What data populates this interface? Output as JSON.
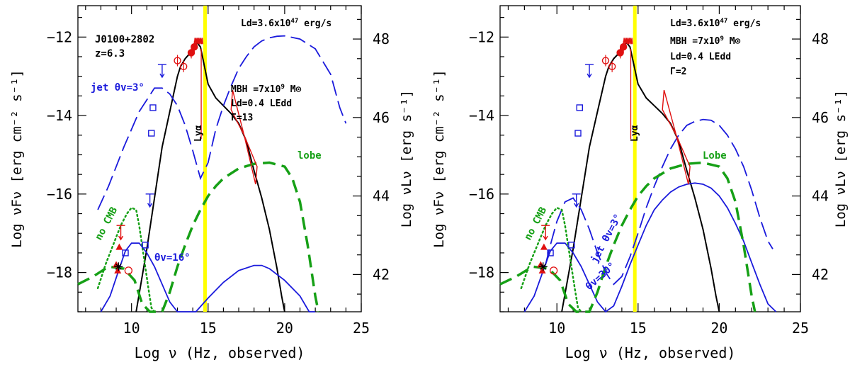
{
  "colors": {
    "axis": "#000000",
    "disk": "#000000",
    "jet": "#1a1adc",
    "lobe": "#16a016",
    "data": "#e01010",
    "lya_line": "#ffff00"
  },
  "chart_data": [
    {
      "type": "line",
      "panel": "left",
      "xlabel": "Log ν (Hz, observed)",
      "ylabel": "Log νFν [erg cm⁻² s⁻¹]",
      "y2label": "Log νLν [erg s⁻¹]",
      "xlim": [
        6.5,
        25
      ],
      "ylim": [
        -19,
        -11.2
      ],
      "xticks": [
        10,
        15,
        20,
        25
      ],
      "yticks": [
        -12,
        -14,
        -16,
        -18
      ],
      "y2ticks": [
        42,
        44,
        46,
        48
      ],
      "annotations": [
        "J0100+2802",
        "z=6.3",
        "Ld=3.6x10^47 erg/s",
        "MBH =7x10^9 M⊙",
        "Ld=0.4 LEdd",
        "Γ=13",
        "Lyα",
        "no CMB",
        "lobe"
      ],
      "series": [
        {
          "name": "Accretion disk",
          "style": "solid-black",
          "x": [
            10.3,
            11,
            12,
            12.5,
            13,
            13.2,
            13.5,
            13.8,
            14.1,
            14.3,
            14.5,
            15,
            15.5,
            16,
            16.5,
            17,
            17.5,
            18,
            18.5,
            19,
            19.5,
            19.8,
            20
          ],
          "y": [
            -19,
            -17.4,
            -14.8,
            -13.9,
            -13.0,
            -12.75,
            -12.55,
            -12.42,
            -12.22,
            -12.15,
            -12.25,
            -13.2,
            -13.55,
            -13.75,
            -13.95,
            -14.2,
            -14.65,
            -15.4,
            -16.1,
            -16.9,
            -17.9,
            -18.6,
            -19
          ]
        },
        {
          "name": "jet θv=3°",
          "style": "dash-blue",
          "x": [
            7.8,
            8.5,
            9.5,
            10.5,
            11.5,
            12,
            12.5,
            13,
            13.5,
            14,
            14.5,
            15,
            15.5,
            16,
            16.5,
            17,
            17.5,
            18,
            18.5,
            19,
            19.5,
            20,
            21,
            22,
            23,
            23.6,
            24
          ],
          "y": [
            -16.4,
            -15.8,
            -14.8,
            -13.9,
            -13.3,
            -13.3,
            -13.45,
            -13.75,
            -14.25,
            -14.9,
            -15.6,
            -15.2,
            -14.35,
            -13.75,
            -13.25,
            -12.8,
            -12.5,
            -12.25,
            -12.1,
            -12.02,
            -11.98,
            -11.97,
            -12.05,
            -12.3,
            -12.95,
            -13.8,
            -14.2
          ]
        },
        {
          "name": "θv=16°",
          "style": "solid-blue",
          "x": [
            8,
            8.6,
            9.2,
            9.6,
            10,
            10.5,
            11,
            11.5,
            12,
            12.5,
            13,
            13.3,
            13.5,
            13.8,
            14.2,
            15,
            16,
            17,
            18,
            18.5,
            19,
            20,
            21,
            21.6,
            22
          ],
          "y": [
            -19,
            -18.6,
            -17.9,
            -17.45,
            -17.25,
            -17.25,
            -17.5,
            -17.85,
            -18.3,
            -18.75,
            -19,
            -19.3,
            -19.35,
            -19.2,
            -19.0,
            -18.65,
            -18.25,
            -17.95,
            -17.82,
            -17.82,
            -17.9,
            -18.2,
            -18.6,
            -19.0,
            -19.3
          ]
        },
        {
          "name": "no CMB",
          "style": "dotted-green",
          "x": [
            7.8,
            8.3,
            8.8,
            9.3,
            9.7,
            10,
            10.3,
            10.5,
            10.8,
            11.1,
            11.3,
            11.5
          ],
          "y": [
            -18.4,
            -17.8,
            -17.3,
            -16.8,
            -16.5,
            -16.35,
            -16.4,
            -16.8,
            -17.6,
            -18.4,
            -18.9,
            -19.0
          ]
        },
        {
          "name": "lobe",
          "style": "dash-green",
          "x": [
            6.5,
            7.5,
            8.5,
            9.5,
            10.2,
            10.7,
            11.2,
            11.6,
            11.9,
            12,
            12.5,
            13,
            13.5,
            14,
            14.5,
            15,
            15.5,
            16,
            17,
            18,
            19,
            20,
            20.5,
            21,
            21.5,
            22,
            22.2
          ],
          "y": [
            -18.3,
            -18.1,
            -17.85,
            -17.9,
            -18.2,
            -18.8,
            -19.3,
            -19.6,
            -19.35,
            -19.2,
            -18.5,
            -17.85,
            -17.3,
            -16.8,
            -16.4,
            -16.05,
            -15.8,
            -15.6,
            -15.35,
            -15.23,
            -15.2,
            -15.3,
            -15.6,
            -16.2,
            -17.3,
            -18.6,
            -19
          ]
        }
      ]
    },
    {
      "type": "line",
      "panel": "right",
      "xlabel": "Log ν (Hz, observed)",
      "ylabel": "Log νFν [erg cm⁻² s⁻¹]",
      "y2label": "Log νLν [erg s⁻¹]",
      "xlim": [
        6.5,
        25
      ],
      "ylim": [
        -19,
        -11.2
      ],
      "xticks": [
        10,
        15,
        20,
        25
      ],
      "yticks": [
        -12,
        -14,
        -16,
        -18
      ],
      "y2ticks": [
        42,
        44,
        46,
        48
      ],
      "annotations": [
        "Ld=3.6x10^47 erg/s",
        "MBH =7x10^9 M⊙",
        "Ld=0.4 LEdd",
        "Γ=2",
        "Lyα",
        "no CMB",
        "Lobe",
        "jet θv=3°",
        "θv=30°"
      ],
      "series": [
        {
          "name": "Accretion disk",
          "style": "solid-black",
          "x": [
            10.3,
            11,
            12,
            12.5,
            13,
            13.2,
            13.5,
            13.8,
            14.1,
            14.3,
            14.5,
            15,
            15.5,
            16,
            16.5,
            17,
            17.5,
            18,
            18.5,
            19,
            19.5,
            19.8,
            20
          ],
          "y": [
            -19,
            -17.4,
            -14.8,
            -13.9,
            -13.0,
            -12.75,
            -12.55,
            -12.42,
            -12.22,
            -12.15,
            -12.25,
            -13.2,
            -13.55,
            -13.75,
            -13.95,
            -14.2,
            -14.65,
            -15.4,
            -16.1,
            -16.9,
            -17.9,
            -18.6,
            -19
          ]
        },
        {
          "name": "jet θv=3°",
          "style": "dash-blue",
          "x": [
            9.3,
            9.6,
            10,
            10.5,
            11,
            11.5,
            12,
            12.5,
            13,
            13.5,
            14,
            14.5,
            15,
            15.5,
            16,
            16.5,
            17,
            17.5,
            18,
            18.5,
            19,
            19.5,
            20,
            20.5,
            21,
            21.5,
            22,
            22.5,
            23,
            23.3
          ],
          "y": [
            -17.8,
            -17.3,
            -16.7,
            -16.2,
            -16.1,
            -16.4,
            -16.9,
            -17.5,
            -18.0,
            -18.3,
            -18.1,
            -17.6,
            -17.0,
            -16.35,
            -15.8,
            -15.3,
            -14.85,
            -14.5,
            -14.25,
            -14.15,
            -14.1,
            -14.12,
            -14.25,
            -14.5,
            -14.85,
            -15.3,
            -15.9,
            -16.6,
            -17.2,
            -17.4
          ]
        },
        {
          "name": "θv=30°",
          "style": "solid-blue",
          "x": [
            8,
            8.6,
            9.2,
            9.6,
            10,
            10.5,
            11,
            11.5,
            12,
            12.5,
            13,
            13.5,
            14,
            14.5,
            15,
            15.5,
            16,
            16.5,
            17,
            17.5,
            18,
            18.5,
            19,
            19.5,
            20,
            20.5,
            21,
            21.5,
            22,
            22.5,
            23,
            23.5
          ],
          "y": [
            -19,
            -18.6,
            -17.9,
            -17.45,
            -17.25,
            -17.25,
            -17.5,
            -17.85,
            -18.3,
            -18.75,
            -19.0,
            -18.85,
            -18.35,
            -17.8,
            -17.3,
            -16.8,
            -16.4,
            -16.15,
            -15.95,
            -15.82,
            -15.75,
            -15.72,
            -15.75,
            -15.85,
            -16.05,
            -16.35,
            -16.75,
            -17.2,
            -17.75,
            -18.3,
            -18.8,
            -19.1
          ]
        },
        {
          "name": "no CMB",
          "style": "dotted-green",
          "x": [
            7.8,
            8.3,
            8.8,
            9.3,
            9.7,
            10,
            10.3,
            10.5,
            10.8,
            11.1,
            11.3,
            11.5
          ],
          "y": [
            -18.4,
            -17.8,
            -17.3,
            -16.8,
            -16.5,
            -16.35,
            -16.4,
            -16.8,
            -17.6,
            -18.4,
            -18.9,
            -19.0
          ]
        },
        {
          "name": "Lobe",
          "style": "dash-green",
          "x": [
            6.5,
            7.5,
            8.5,
            9.5,
            10.2,
            10.7,
            11.2,
            11.6,
            11.9,
            12,
            12.5,
            13,
            13.5,
            14,
            14.5,
            15,
            15.5,
            16,
            17,
            18,
            19,
            20,
            20.5,
            21,
            21.5,
            22,
            22.2
          ],
          "y": [
            -18.3,
            -18.1,
            -17.85,
            -17.9,
            -18.2,
            -18.8,
            -19.3,
            -19.6,
            -19.35,
            -19.2,
            -18.5,
            -17.85,
            -17.3,
            -16.8,
            -16.4,
            -16.05,
            -15.8,
            -15.6,
            -15.35,
            -15.23,
            -15.2,
            -15.3,
            -15.6,
            -16.2,
            -17.3,
            -18.6,
            -19
          ]
        }
      ]
    }
  ],
  "labels": {
    "left": {
      "source": "J0100+2802",
      "redshift": "z=6.3",
      "disk_lum": "Ld=3.6x10",
      "disk_lum_exp": "47",
      "disk_lum_unit": " erg/s",
      "mbh": "MBH =7x10",
      "mbh_exp": "9",
      "mbh_unit": " M⊙",
      "ld_ratio": "Ld=0.4 LEdd",
      "gamma": "Γ=13",
      "jet_label": "jet θv=3°",
      "jet16_label": "θv=16°",
      "nocmb_label": "no CMB",
      "lobe_label": "lobe",
      "lya_label": "Lyα"
    },
    "right": {
      "disk_lum": "Ld=3.6x10",
      "disk_lum_exp": "47",
      "disk_lum_unit": " erg/s",
      "mbh": "MBH =7x10",
      "mbh_exp": "9",
      "mbh_unit": " M⊙",
      "ld_ratio": "Ld=0.4 LEdd",
      "gamma": "Γ=2",
      "jet_label": "jet θv=3°",
      "jet30_label": "θv=30°",
      "nocmb_label": "no CMB",
      "lobe_label": "Lobe",
      "lya_label": "Lyα"
    }
  },
  "observations": {
    "radio_red_triangles": [
      [
        9.2,
        -17.35
      ],
      [
        9.0,
        -17.8
      ],
      [
        9.1,
        -17.95
      ]
    ],
    "radio_blue_squares": [
      [
        9.6,
        -17.5
      ],
      [
        10.9,
        -17.3
      ]
    ],
    "radio_upper_limits": [
      [
        9.3,
        -16.8
      ],
      [
        11.2,
        -16.0
      ]
    ],
    "blue_squares_mid": [
      [
        11.4,
        -13.8
      ],
      [
        11.3,
        -14.45
      ]
    ],
    "blue_upper_limit": [
      [
        12.0,
        -12.7
      ]
    ],
    "ir_points": [
      [
        13.0,
        -12.6
      ],
      [
        13.4,
        -12.75
      ],
      [
        13.9,
        -12.4
      ],
      [
        14.1,
        -12.25
      ]
    ],
    "xray_bowtie": [
      [
        16.5,
        -13.6
      ],
      [
        18.2,
        -15.4
      ]
    ]
  }
}
